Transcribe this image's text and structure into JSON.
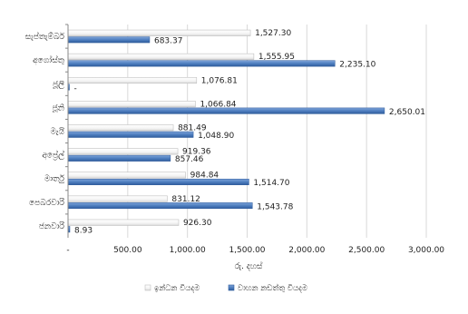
{
  "chart_data": {
    "type": "bar",
    "orientation": "horizontal",
    "title": "",
    "xlabel": "රු. දහස්",
    "ylabel": "",
    "xlim": [
      0,
      3000
    ],
    "x_ticks": [
      0,
      500,
      1000,
      1500,
      2000,
      2500,
      3000
    ],
    "x_tick_labels": [
      "-",
      "500.00",
      "1,000.00",
      "1,500.00",
      "2,000.00",
      "2,500.00",
      "3,000.00"
    ],
    "grid": "vertical",
    "legend_position": "bottom",
    "categories": [
      "සැප්තැම්බර්",
      "අගෝස්තු",
      "ජූලි",
      "ජූනි",
      "මැයි",
      "අප්‍රේල්",
      "මාර්තු",
      "පෙබරවාරි",
      "ජනවාරි"
    ],
    "series": [
      {
        "name": "ඉන්ධන වියදම",
        "color": "#ffffff",
        "values": [
          1527.3,
          1555.95,
          1076.81,
          1066.84,
          881.49,
          919.36,
          984.84,
          831.12,
          926.3
        ],
        "labels": [
          "1,527.30",
          "1,555.95",
          "1,076.81",
          "1,066.84",
          "881.49",
          "919.36",
          "984.84",
          "831.12",
          "926.30"
        ]
      },
      {
        "name": "වාහන නඩත්තු වියදම",
        "color": "#4f7fc0",
        "values": [
          683.37,
          2235.1,
          0,
          2650.01,
          1048.9,
          857.46,
          1514.7,
          1543.78,
          8.93
        ],
        "labels": [
          "683.37",
          "2,235.10",
          "-",
          "2,650.01",
          "1,048.90",
          "857.46",
          "1,514.70",
          "1,543.78",
          "8.93"
        ]
      }
    ]
  }
}
